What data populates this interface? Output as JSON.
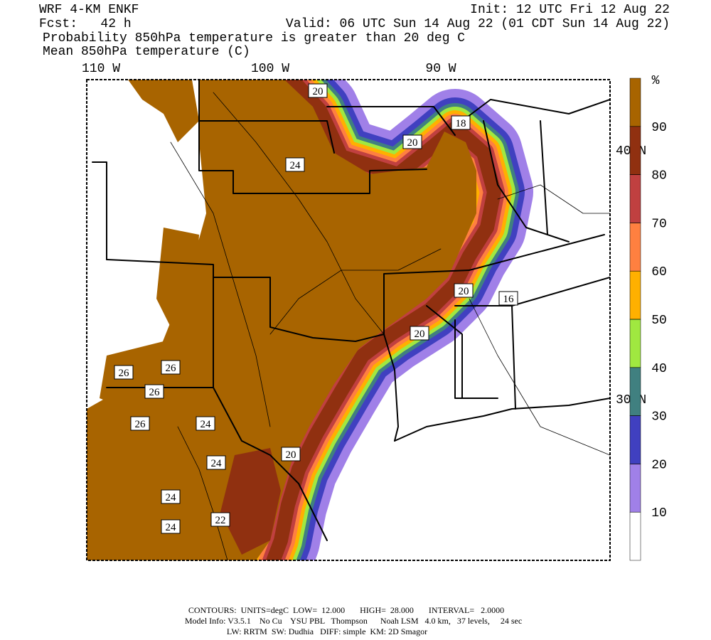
{
  "header": {
    "model": "WRF 4-KM ENKF",
    "forecast": "Fcst:   42 h",
    "init": "Init: 12 UTC Fri 12 Aug 22",
    "valid": "Valid: 06 UTC Sun 14 Aug 22 (01 CDT Sun 14 Aug 22)",
    "field": "Probability 850hPa temperature is greater than 20 deg C",
    "contour_field": "Mean 850hPa temperature (C)"
  },
  "map": {
    "longitudes": [
      "110 W",
      "100 W",
      "90 W"
    ],
    "latitudes": [
      "40 N",
      "30 N"
    ],
    "contour_labels": [
      "20",
      "18",
      "20",
      "24",
      "20",
      "16",
      "20",
      "26",
      "26",
      "26",
      "26",
      "24",
      "20",
      "24",
      "24",
      "22",
      "24"
    ]
  },
  "colorbar": {
    "unit": "%",
    "levels": [
      10,
      20,
      30,
      40,
      50,
      60,
      70,
      80,
      90
    ],
    "colors": [
      "#ffffff",
      "#a080e8",
      "#4040c0",
      "#408080",
      "#a0e840",
      "#ffb000",
      "#ff8040",
      "#c04040",
      "#903010",
      "#a86400"
    ]
  },
  "footer": {
    "contours": "CONTOURS:  UNITS=degC  LOW=  12.000       HIGH=  28.000       INTERVAL=   2.0000",
    "model_info": "Model Info: V3.5.1    No Cu    YSU PBL   Thompson      Noah LSM   4.0 km,   37 levels,     24 sec",
    "physics": "LW: RRTM  SW: Dudhia   DIFF: simple  KM: 2D Smagor"
  }
}
